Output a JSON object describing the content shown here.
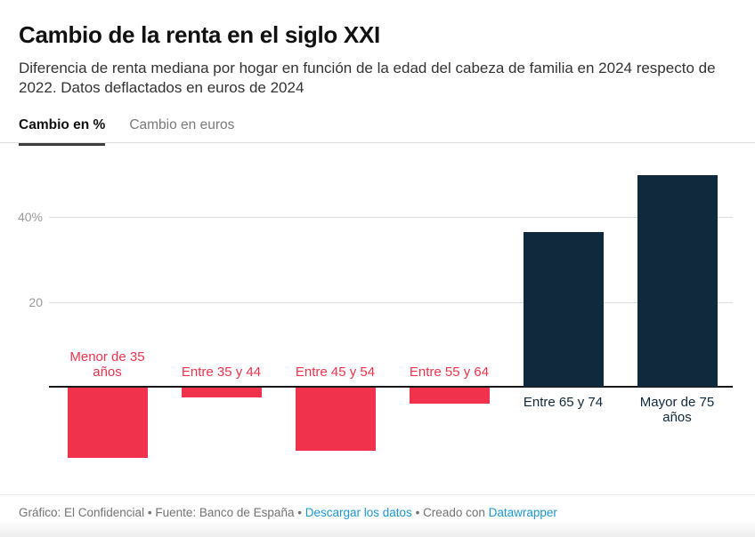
{
  "header": {
    "title": "Cambio de la renta en el siglo XXI",
    "subtitle": "Diferencia de renta mediana por hogar en función de la edad del cabeza de familia en 2024 respecto de 2022. Datos deflactados en euros de 2024"
  },
  "tabs": [
    {
      "label": "Cambio en %",
      "active": true
    },
    {
      "label": "Cambio en euros",
      "active": false
    }
  ],
  "chart_data": {
    "type": "bar",
    "title": "Cambio de la renta en el siglo XXI",
    "categories": [
      "Menor de 35 años",
      "Entre 35 y 44",
      "Entre 45 y 54",
      "Entre 55 y 64",
      "Entre 65 y 74",
      "Mayor de 75 años"
    ],
    "values": [
      -16.5,
      -2.2,
      -14.9,
      -3.7,
      36.4,
      49.8
    ],
    "unit": "%",
    "yticks": [
      {
        "value": 20,
        "label": "20"
      },
      {
        "value": 40,
        "label": "40%"
      }
    ],
    "ylim": [
      -22,
      55
    ],
    "grid": true,
    "legend": "none",
    "negative_color": "#f0324d",
    "positive_color": "#10293c",
    "negative_label_color": "#f0324d",
    "positive_label_color": "#10293c"
  },
  "footer": {
    "credit": "Gráfico: El Confidencial",
    "separator": "•",
    "source": "Fuente: Banco de España",
    "download_label": "Descargar los datos",
    "created_label": "Creado con",
    "tool_label": "Datawrapper",
    "link_color": "#1f96d4"
  }
}
